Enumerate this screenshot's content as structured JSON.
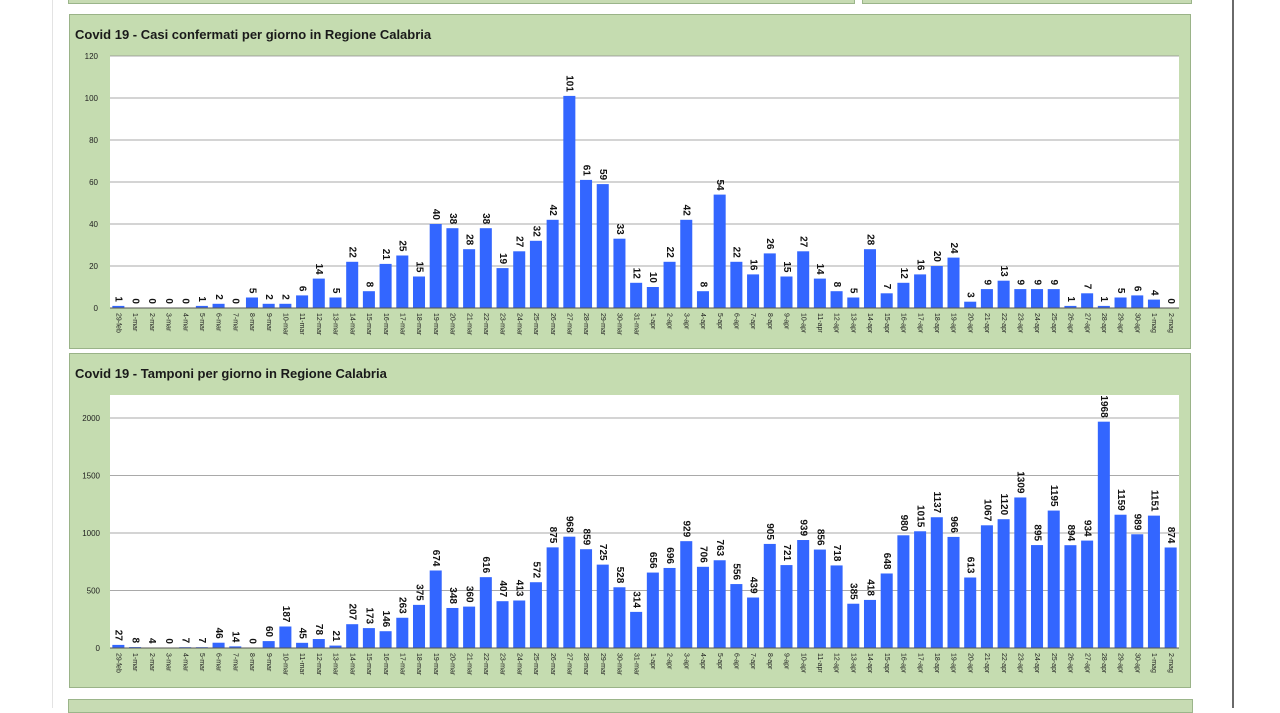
{
  "chart_data": [
    {
      "type": "bar",
      "title": "Covid 19 - Casi confermati per giorno in Regione Calabria",
      "ylim": [
        0,
        120
      ],
      "yticks": [
        0,
        20,
        40,
        60,
        80,
        100,
        120
      ],
      "grid": true,
      "bar_color": "#3366ff",
      "categories": [
        "29-feb",
        "1-mar",
        "2-mar",
        "3-mar",
        "4-mar",
        "5-mar",
        "6-mar",
        "7-mar",
        "8-mar",
        "9-mar",
        "10-mar",
        "11-mar",
        "12-mar",
        "13-mar",
        "14-mar",
        "15-mar",
        "16-mar",
        "17-mar",
        "18-mar",
        "19-mar",
        "20-mar",
        "21-mar",
        "22-mar",
        "23-mar",
        "24-mar",
        "25-mar",
        "26-mar",
        "27-mar",
        "28-mar",
        "29-mar",
        "30-mar",
        "31-mar",
        "1-apr",
        "2-apr",
        "3-apr",
        "4-apr",
        "5-apr",
        "6-apr",
        "7-apr",
        "8-apr",
        "9-apr",
        "10-apr",
        "11-apr",
        "12-apr",
        "13-apr",
        "14-apr",
        "15-apr",
        "16-apr",
        "17-apr",
        "18-apr",
        "19-apr",
        "20-apr",
        "21-apr",
        "22-apr",
        "23-apr",
        "24-apr",
        "25-apr",
        "26-apr",
        "27-apr",
        "28-apr",
        "29-apr",
        "30-apr",
        "1-mag",
        "2-mag"
      ],
      "values": [
        1,
        0,
        0,
        0,
        0,
        1,
        2,
        0,
        5,
        2,
        2,
        6,
        14,
        5,
        22,
        8,
        21,
        25,
        15,
        40,
        38,
        28,
        38,
        19,
        27,
        32,
        42,
        101,
        61,
        59,
        33,
        12,
        10,
        22,
        42,
        8,
        54,
        22,
        16,
        26,
        15,
        27,
        14,
        8,
        5,
        28,
        7,
        12,
        16,
        20,
        24,
        3,
        9,
        13,
        9,
        9,
        9,
        1,
        7,
        1,
        5,
        6,
        4,
        0
      ]
    },
    {
      "type": "bar",
      "title": "Covid 19 - Tamponi per giorno in Regione Calabria",
      "ylim": [
        0,
        2200
      ],
      "yticks": [
        0,
        500,
        1000,
        1500,
        2000
      ],
      "grid": true,
      "bar_color": "#3366ff",
      "categories": [
        "29-feb",
        "1-mar",
        "2-mar",
        "3-mar",
        "4-mar",
        "5-mar",
        "6-mar",
        "7-mar",
        "8-mar",
        "9-mar",
        "10-mar",
        "11-mar",
        "12-mar",
        "13-mar",
        "14-mar",
        "15-mar",
        "16-mar",
        "17-mar",
        "18-mar",
        "19-mar",
        "20-mar",
        "21-mar",
        "22-mar",
        "23-mar",
        "24-mar",
        "25-mar",
        "26-mar",
        "27-mar",
        "28-mar",
        "29-mar",
        "30-mar",
        "31-mar",
        "1-apr",
        "2-apr",
        "3-apr",
        "4-apr",
        "5-apr",
        "6-apr",
        "7-apr",
        "8-apr",
        "9-apr",
        "10-apr",
        "11-apr",
        "12-apr",
        "13-apr",
        "14-apr",
        "15-apr",
        "16-apr",
        "17-apr",
        "18-apr",
        "19-apr",
        "20-apr",
        "21-apr",
        "22-apr",
        "23-apr",
        "24-apr",
        "25-apr",
        "26-apr",
        "27-apr",
        "28-apr",
        "29-apr",
        "30-apr",
        "1-mag",
        "2-mag"
      ],
      "values": [
        27,
        8,
        4,
        0,
        7,
        7,
        46,
        14,
        0,
        60,
        187,
        45,
        78,
        21,
        207,
        173,
        146,
        263,
        375,
        674,
        348,
        360,
        616,
        407,
        413,
        572,
        875,
        968,
        859,
        725,
        528,
        314,
        656,
        696,
        929,
        706,
        763,
        556,
        439,
        905,
        721,
        939,
        856,
        718,
        385,
        418,
        648,
        980,
        1015,
        1137,
        966,
        613,
        1067,
        1120,
        1309,
        895,
        1195,
        894,
        934,
        1968,
        1159,
        989,
        1151,
        874
      ]
    }
  ]
}
